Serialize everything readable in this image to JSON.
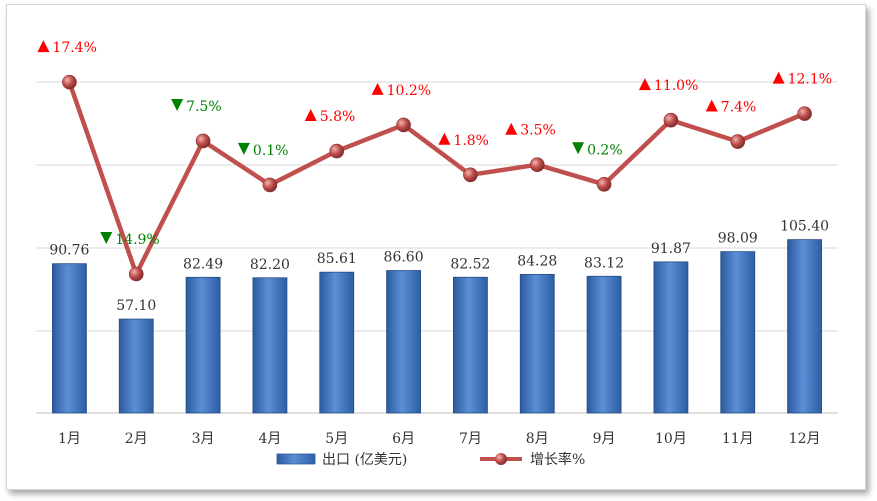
{
  "chart_data": {
    "type": "bar+line",
    "categories": [
      "1月",
      "2月",
      "3月",
      "4月",
      "5月",
      "6月",
      "7月",
      "8月",
      "9月",
      "10月",
      "11月",
      "12月"
    ],
    "series": [
      {
        "name": "出口（亿美元）",
        "type": "bar",
        "values": [
          90.76,
          57.1,
          82.49,
          82.2,
          85.61,
          86.6,
          82.52,
          84.28,
          83.12,
          91.87,
          98.09,
          105.4
        ],
        "labels": [
          "90.76",
          "57.10",
          "82.49",
          "82.20",
          "85.61",
          "86.60",
          "82.52",
          "84.28",
          "83.12",
          "91.87",
          "98.09",
          "105.40"
        ],
        "color": "#4a7ec9"
      },
      {
        "name": "增长率%",
        "type": "line",
        "values": [
          17.4,
          -14.9,
          7.5,
          0.1,
          5.8,
          10.2,
          1.8,
          3.5,
          0.2,
          11.0,
          7.4,
          12.1
        ],
        "labels": [
          "17.4%",
          "14.9%",
          "7.5%",
          "0.1%",
          "5.8%",
          "10.2%",
          "1.8%",
          "3.5%",
          "0.2%",
          "11.0%",
          "7.4%",
          "12.1%"
        ],
        "directions": [
          "up",
          "down",
          "down",
          "down",
          "up",
          "up",
          "up",
          "up",
          "down",
          "up",
          "up",
          "up"
        ],
        "color": "#c0504d"
      }
    ],
    "grid": true,
    "legend": "bottom",
    "colors": {
      "up": "#ff0000",
      "down": "#008000",
      "grid": "#d9d9d9",
      "axis": "#bfbfbf"
    }
  },
  "legend": {
    "bar_label": "出口  (亿美元)",
    "line_label": "增长率%"
  }
}
